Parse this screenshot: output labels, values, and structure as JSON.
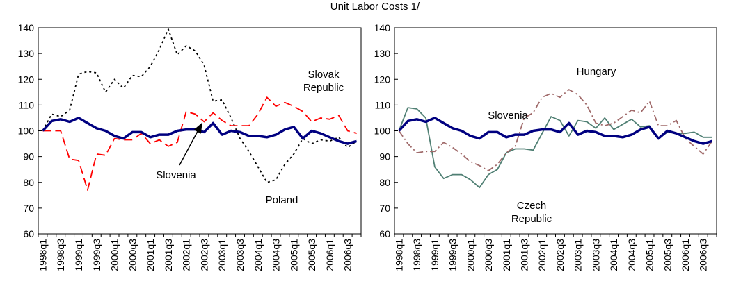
{
  "title": "Unit Labor Costs 1/",
  "chart_data": [
    {
      "type": "line",
      "categories": [
        "1998q1",
        null,
        "1998q3",
        null,
        "1999q1",
        null,
        "1999q3",
        null,
        "2000q1",
        null,
        "2000q3",
        null,
        "2001q1",
        null,
        "2001q3",
        null,
        "2002q1",
        null,
        "2002q3",
        null,
        "2003q1",
        null,
        "2003q3",
        null,
        "2004q1",
        null,
        "2004q3",
        null,
        "2005q1",
        null,
        "2005q3",
        null,
        "2006q1",
        null,
        "2006q3",
        null
      ],
      "ylim": [
        60,
        140
      ],
      "yticks": [
        60,
        70,
        80,
        90,
        100,
        110,
        120,
        130,
        140
      ],
      "series": [
        {
          "name": "Slovenia",
          "color": "#000080",
          "style": "solid",
          "values": [
            100,
            103.8,
            104.5,
            103.5,
            105,
            103,
            101,
            100,
            98,
            97,
            99.5,
            99.5,
            97.5,
            98.5,
            98.5,
            100,
            100.5,
            100.5,
            99.5,
            103,
            98.5,
            100,
            99.5,
            98,
            98,
            97.5,
            98.5,
            100.5,
            101.5,
            97,
            100,
            99,
            97.5,
            96,
            95,
            96
          ]
        },
        {
          "name": "Slovak Republic",
          "color": "#ff0000",
          "style": "dashed",
          "values": [
            100,
            100,
            100,
            89,
            88.5,
            77,
            91,
            90.5,
            97,
            96.5,
            96.5,
            99,
            95,
            96.5,
            94,
            95.5,
            107.5,
            106.5,
            103.5,
            107,
            104,
            102,
            102,
            102,
            106.5,
            113,
            109.5,
            111,
            109.5,
            107.5,
            103.5,
            105,
            104.5,
            106,
            100,
            99
          ]
        },
        {
          "name": "Poland",
          "color": "#000000",
          "style": "dotted",
          "values": [
            100,
            106.5,
            105.5,
            108,
            122,
            123,
            122.5,
            115,
            120,
            116.5,
            121.5,
            121,
            125,
            131.5,
            139.5,
            129.5,
            133,
            131,
            125.5,
            111.5,
            112,
            105,
            97,
            92,
            86,
            80,
            81,
            87,
            91,
            97,
            95,
            96.5,
            96,
            97.5,
            93.5,
            96
          ]
        }
      ]
    },
    {
      "type": "line",
      "categories": [
        "1998q1",
        null,
        "1998q3",
        null,
        "1999q1",
        null,
        "1999q3",
        null,
        "2000q1",
        null,
        "2000q3",
        null,
        "2001q1",
        null,
        "2001q3",
        null,
        "2002q1",
        null,
        "2002q3",
        null,
        "2003q1",
        null,
        "2003q3",
        null,
        "2004q1",
        null,
        "2004q3",
        null,
        "2005q1",
        null,
        "2005q3",
        null,
        "2006q1",
        null,
        "2006q3",
        null
      ],
      "ylim": [
        60,
        140
      ],
      "yticks": [
        60,
        70,
        80,
        90,
        100,
        110,
        120,
        130,
        140
      ],
      "series": [
        {
          "name": "Slovenia",
          "color": "#000080",
          "style": "solid",
          "values": [
            100,
            103.8,
            104.5,
            103.5,
            105,
            103,
            101,
            100,
            98,
            97,
            99.5,
            99.5,
            97.5,
            98.5,
            98.5,
            100,
            100.5,
            100.5,
            99.5,
            103,
            98.5,
            100,
            99.5,
            98,
            98,
            97.5,
            98.5,
            100.5,
            101.5,
            97,
            100,
            99,
            97.5,
            96,
            95,
            96
          ]
        },
        {
          "name": "Hungary",
          "color": "#a06a6a",
          "style": "dashdot",
          "values": [
            100,
            95,
            91.5,
            92,
            92,
            95.5,
            93.5,
            91,
            88,
            86.5,
            84.5,
            87,
            91.5,
            94,
            105,
            107,
            113,
            114.5,
            113,
            116,
            114,
            110,
            103,
            102,
            103,
            105.5,
            108,
            107,
            111.5,
            102,
            102,
            104,
            97,
            94,
            91,
            96
          ]
        },
        {
          "name": "Czech Republic",
          "color": "#4f7f73",
          "style": "solid",
          "values": [
            100,
            109,
            108.5,
            105,
            86,
            81.5,
            83,
            83,
            81,
            78,
            83,
            85,
            91.5,
            93,
            93,
            92.5,
            99,
            105.5,
            104,
            98,
            104,
            103.5,
            101,
            105,
            100.5,
            102.5,
            104.5,
            101.5,
            102,
            97,
            99.5,
            99,
            99,
            99.5,
            97.5,
            97.5
          ]
        }
      ]
    }
  ]
}
